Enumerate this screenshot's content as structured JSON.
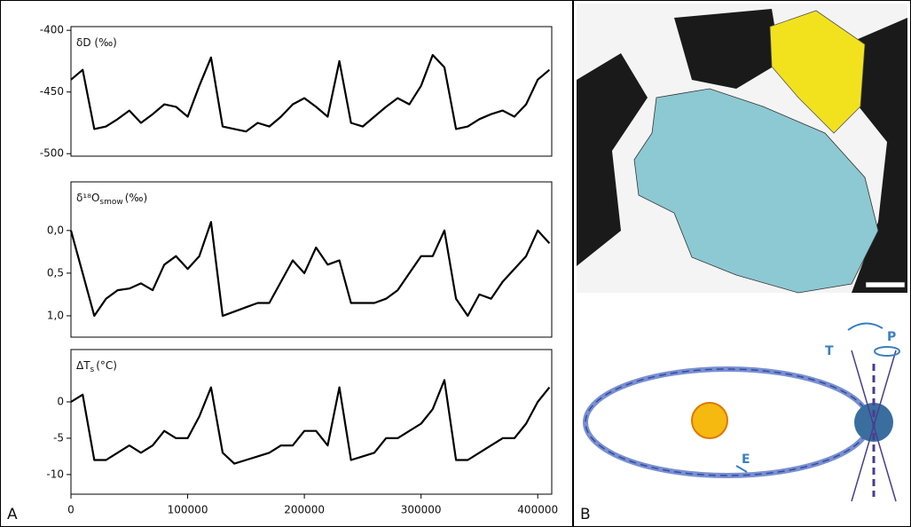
{
  "chart_data": [
    {
      "type": "line",
      "label": "δD (‰)",
      "x": [
        0,
        10000,
        20000,
        30000,
        40000,
        50000,
        60000,
        70000,
        80000,
        90000,
        100000,
        110000,
        120000,
        130000,
        140000,
        150000,
        160000,
        170000,
        180000,
        190000,
        200000,
        210000,
        220000,
        230000,
        240000,
        250000,
        260000,
        270000,
        280000,
        290000,
        300000,
        310000,
        320000,
        330000,
        340000,
        350000,
        360000,
        370000,
        380000,
        390000,
        400000,
        410000
      ],
      "values": [
        -440,
        -432,
        -480,
        -478,
        -472,
        -465,
        -475,
        -468,
        -460,
        -462,
        -470,
        -445,
        -422,
        -478,
        -480,
        -482,
        -475,
        -478,
        -470,
        -460,
        -455,
        -462,
        -470,
        -425,
        -475,
        -478,
        -470,
        -462,
        -455,
        -460,
        -445,
        -420,
        -430,
        -480,
        -478,
        -472,
        -468,
        -465,
        -470,
        -460,
        -440,
        -432
      ],
      "color": "#000000",
      "xlim": [
        0,
        412000
      ],
      "ylim": [
        -502,
        -397
      ],
      "yticks": [
        -400,
        -450,
        -500
      ]
    },
    {
      "type": "line",
      "label": "δ¹⁸O",
      "label_sub": "smow",
      "label_unit": "(‰)",
      "x": [
        0,
        10000,
        20000,
        30000,
        40000,
        50000,
        60000,
        70000,
        80000,
        90000,
        100000,
        110000,
        120000,
        130000,
        140000,
        150000,
        160000,
        170000,
        180000,
        190000,
        200000,
        210000,
        220000,
        230000,
        240000,
        250000,
        260000,
        270000,
        280000,
        290000,
        300000,
        310000,
        320000,
        330000,
        340000,
        350000,
        360000,
        370000,
        380000,
        390000,
        400000,
        410000
      ],
      "values": [
        0.0,
        0.5,
        1.0,
        0.8,
        0.7,
        0.68,
        0.62,
        0.7,
        0.4,
        0.3,
        0.45,
        0.3,
        -0.1,
        1.0,
        0.95,
        0.9,
        0.85,
        0.85,
        0.6,
        0.35,
        0.5,
        0.2,
        0.4,
        0.35,
        0.85,
        0.85,
        0.85,
        0.8,
        0.7,
        0.5,
        0.3,
        0.3,
        0.0,
        0.8,
        1.0,
        0.75,
        0.8,
        0.6,
        0.45,
        0.3,
        0.0,
        0.15
      ],
      "color": "#000000",
      "xlim": [
        0,
        412000
      ],
      "ylim": [
        -0.57,
        1.25
      ],
      "y_inverted": true,
      "yticks": [
        {
          "value": 0,
          "label": "0,0"
        },
        {
          "value": 0.5,
          "label": "0,5"
        },
        {
          "value": 1,
          "label": "1,0"
        }
      ]
    },
    {
      "type": "line",
      "label": "ΔT",
      "label_sub": "s",
      "label_unit": "(°C)",
      "x": [
        0,
        10000,
        20000,
        30000,
        40000,
        50000,
        60000,
        70000,
        80000,
        90000,
        100000,
        110000,
        120000,
        130000,
        140000,
        150000,
        160000,
        170000,
        180000,
        190000,
        200000,
        210000,
        220000,
        230000,
        240000,
        250000,
        260000,
        270000,
        280000,
        290000,
        300000,
        310000,
        320000,
        330000,
        340000,
        350000,
        360000,
        370000,
        380000,
        390000,
        400000,
        410000
      ],
      "values": [
        0,
        1,
        -8,
        -8,
        -7,
        -6,
        -7,
        -6,
        -4,
        -5,
        -5,
        -2,
        2,
        -7,
        -8.5,
        -8,
        -7.5,
        -7,
        -6,
        -6,
        -4,
        -4,
        -6,
        2,
        -8,
        -7.5,
        -7,
        -5,
        -5,
        -4,
        -3,
        -1,
        3,
        -8,
        -8,
        -7,
        -6,
        -5,
        -5,
        -3,
        0,
        2
      ],
      "color": "#000000",
      "xlim": [
        0,
        412000
      ],
      "ylim": [
        -12.7,
        7.2
      ],
      "yticks": [
        0,
        -5,
        -10
      ],
      "xticks": [
        0,
        100000,
        200000,
        300000,
        400000
      ]
    }
  ],
  "panels": {
    "a": "A",
    "b": "B"
  },
  "orbit": {
    "t": "T",
    "p": "P",
    "e": "E"
  }
}
